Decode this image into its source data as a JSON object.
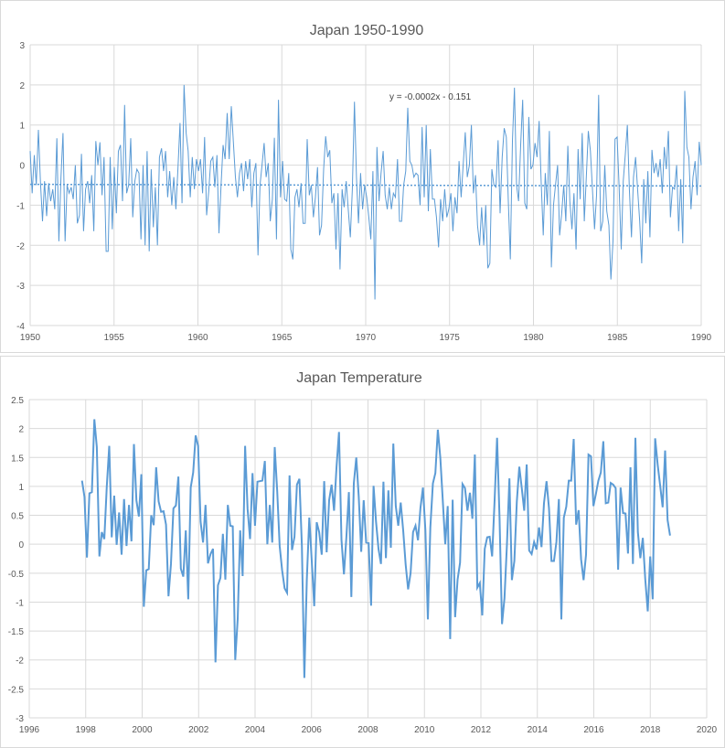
{
  "chart_data": [
    {
      "type": "line",
      "title": "Japan 1950-1990",
      "xlabel": "",
      "ylabel": "",
      "xlim": [
        1950,
        1990
      ],
      "ylim": [
        -4,
        3
      ],
      "xticks": [
        1950,
        1955,
        1960,
        1965,
        1970,
        1975,
        1980,
        1985,
        1990
      ],
      "yticks": [
        -4,
        -3,
        -2,
        -1,
        0,
        1,
        2,
        3
      ],
      "grid": true,
      "line_color": "#5b9bd5",
      "x_start": 1950,
      "x_end": 1990,
      "values": [
        0.35,
        -0.7,
        0.25,
        -0.5,
        0.88,
        -0.4,
        -1.4,
        -0.4,
        -1.27,
        -0.45,
        -0.9,
        -0.6,
        -1.1,
        0.67,
        -1.9,
        -0.3,
        0.8,
        -1.9,
        -0.5,
        -0.7,
        -0.55,
        -0.85,
        0.0,
        -1.45,
        -1.25,
        0.28,
        -1.65,
        -0.6,
        -0.4,
        -0.95,
        -0.25,
        -1.65,
        0.6,
        0.0,
        0.57,
        -0.75,
        0.2,
        -2.15,
        -2.15,
        0.2,
        -1.6,
        -0.05,
        -1.2,
        0.35,
        0.5,
        -0.9,
        1.5,
        -0.7,
        -0.5,
        0.67,
        -1.3,
        -0.4,
        -0.1,
        -0.2,
        -1.85,
        0.0,
        -2.0,
        0.35,
        -2.15,
        -0.1,
        -1.55,
        -0.55,
        -2.0,
        0.2,
        0.42,
        -0.15,
        0.35,
        -0.8,
        -0.15,
        -1.0,
        -0.3,
        -1.1,
        -0.1,
        1.05,
        -0.95,
        2.0,
        0.8,
        0.35,
        -0.8,
        0.2,
        -0.6,
        0.15,
        -0.15,
        0.15,
        -0.7,
        0.7,
        -1.25,
        -0.65,
        0.1,
        0.2,
        -0.55,
        0.25,
        -1.7,
        -0.5,
        0.5,
        0.15,
        1.3,
        0.15,
        1.47,
        0.6,
        -0.3,
        -0.8,
        -0.2,
        0.05,
        -0.65,
        0.1,
        -0.35,
        0.15,
        -1.05,
        -0.2,
        0.05,
        -2.25,
        -0.5,
        0.0,
        0.55,
        -0.3,
        0.05,
        -1.4,
        -0.85,
        0.68,
        -1.85,
        1.63,
        -0.8,
        0.1,
        -0.85,
        -0.9,
        -0.2,
        -2.1,
        -2.35,
        -0.8,
        -0.6,
        -1.05,
        -0.45,
        -1.45,
        -1.45,
        0.65,
        -0.75,
        -0.5,
        -1.3,
        -0.8,
        -0.05,
        -1.75,
        -1.5,
        -0.1,
        0.72,
        0.2,
        0.37,
        -0.95,
        -0.7,
        -2.1,
        -0.7,
        -2.6,
        -0.6,
        -1.05,
        -0.4,
        -1.1,
        -1.8,
        -0.6,
        1.58,
        -0.3,
        -1.45,
        -0.2,
        -1.1,
        -0.5,
        -0.8,
        -1.3,
        -1.85,
        -0.15,
        -3.35,
        0.45,
        -0.9,
        -0.2,
        0.35,
        -0.75,
        -1.1,
        -0.55,
        -1.1,
        -0.7,
        -0.8,
        0.15,
        -1.4,
        -1.4,
        -0.5,
        -0.15,
        1.43,
        0.1,
        0.0,
        -0.3,
        -0.2,
        -0.25,
        -1.0,
        0.95,
        -0.8,
        1.0,
        -1.15,
        0.4,
        -0.85,
        -0.85,
        -1.3,
        -2.05,
        -0.85,
        -1.4,
        -0.6,
        -1.3,
        -1.1,
        -0.7,
        -1.65,
        -0.8,
        -1.2,
        0.1,
        -0.8,
        0.0,
        0.82,
        -0.3,
        0.0,
        1.0,
        -0.7,
        -0.25,
        -1.5,
        -2.0,
        -1.05,
        -2.0,
        -1.0,
        -2.57,
        -2.45,
        -0.1,
        -0.5,
        -0.55,
        0.62,
        -1.2,
        0.2,
        0.92,
        0.7,
        -0.9,
        -2.35,
        0.6,
        1.93,
        -0.5,
        -0.9,
        0.5,
        1.63,
        -0.95,
        -1.1,
        1.2,
        -0.1,
        0.0,
        0.55,
        0.2,
        1.1,
        -0.4,
        -1.75,
        -0.2,
        -1.0,
        0.85,
        -2.55,
        -1.0,
        -0.5,
        0.0,
        -1.75,
        -1.2,
        -0.5,
        -1.4,
        0.48,
        -0.9,
        -1.6,
        -0.7,
        -2.1,
        0.4,
        -0.85,
        0.8,
        -1.4,
        -0.3,
        0.85,
        0.35,
        -0.6,
        -1.6,
        -0.75,
        1.75,
        -1.65,
        -1.4,
        0.0,
        -1.15,
        -1.5,
        -2.85,
        -1.9,
        0.65,
        0.7,
        -0.55,
        -2.1,
        -0.4,
        0.25,
        1.0,
        -0.6,
        -1.8,
        -0.3,
        0.2,
        -0.6,
        -1.4,
        -2.45,
        -0.35,
        -1.45,
        -0.15,
        -1.8,
        0.38,
        -0.2,
        0.05,
        -0.3,
        0.15,
        -0.7,
        0.45,
        -0.1,
        0.85,
        -1.3,
        -0.55,
        -0.6,
        0.0,
        -1.65,
        -0.35,
        -1.95,
        1.85,
        0.45,
        0.2,
        -1.1,
        -0.3,
        0.1,
        -0.75,
        0.58,
        0.0
      ],
      "trendline": {
        "label": "y = -0.0002x - 0.151",
        "start_value": -0.48,
        "end_value": -0.52,
        "style": "dotted"
      }
    },
    {
      "type": "line",
      "title": "Japan Temperature",
      "xlabel": "",
      "ylabel": "",
      "xlim": [
        1996,
        2020
      ],
      "ylim": [
        -3,
        2.5
      ],
      "xticks": [
        1996,
        1998,
        2000,
        2002,
        2004,
        2006,
        2008,
        2010,
        2012,
        2014,
        2016,
        2018,
        2020
      ],
      "yticks": [
        -3,
        -2.5,
        -2,
        -1.5,
        -1,
        -0.5,
        0,
        0.5,
        1,
        1.5,
        2,
        2.5
      ],
      "grid": true,
      "line_color": "#5b9bd5",
      "x_start": 1997.87,
      "x_end": 2018.7,
      "values": [
        1.1,
        0.82,
        -0.23,
        0.88,
        0.9,
        2.16,
        1.68,
        -0.21,
        0.21,
        0.09,
        1.0,
        1.7,
        0.12,
        0.84,
        -0.01,
        0.55,
        -0.18,
        0.78,
        -0.03,
        0.68,
        0.05,
        1.73,
        0.76,
        0.48,
        1.21,
        -1.08,
        -0.45,
        -0.43,
        0.5,
        0.33,
        1.33,
        0.74,
        0.56,
        0.57,
        0.34,
        -0.9,
        -0.34,
        0.62,
        0.67,
        1.17,
        -0.42,
        -0.56,
        0.24,
        -0.95,
        0.98,
        1.24,
        1.88,
        1.7,
        0.39,
        0.03,
        0.68,
        -0.33,
        -0.17,
        -0.08,
        -2.04,
        -0.71,
        -0.58,
        0.18,
        -0.61,
        0.68,
        0.32,
        0.31,
        -2.0,
        -1.29,
        0.24,
        -0.55,
        1.7,
        0.61,
        0.09,
        1.23,
        0.32,
        1.08,
        1.09,
        1.1,
        1.44,
        0.0,
        0.68,
        0.03,
        1.68,
        0.92,
        -0.03,
        -0.45,
        -0.76,
        -0.84,
        1.19,
        -0.1,
        0.13,
        1.03,
        1.13,
        -0.03,
        -2.31,
        -0.61,
        0.46,
        -0.29,
        -1.07,
        0.38,
        0.21,
        -0.18,
        1.09,
        -0.14,
        0.76,
        1.03,
        0.58,
        1.34,
        1.94,
        0.08,
        -0.52,
        0.13,
        0.9,
        -0.91,
        1.05,
        1.5,
        0.82,
        -0.13,
        0.76,
        0.03,
        0.02,
        -1.06,
        1.01,
        0.39,
        -0.08,
        -0.34,
        1.08,
        -0.24,
        0.93,
        -0.06,
        1.74,
        0.66,
        0.32,
        0.72,
        0.24,
        -0.35,
        -0.78,
        -0.5,
        0.21,
        0.32,
        0.07,
        0.63,
        0.98,
        0.24,
        -1.3,
        0.29,
        1.05,
        1.23,
        1.98,
        1.5,
        0.76,
        0.0,
        0.66,
        -1.64,
        0.77,
        -1.26,
        -0.61,
        -0.32,
        1.04,
        0.97,
        0.58,
        0.89,
        0.44,
        1.55,
        -0.75,
        -0.67,
        -1.23,
        -0.08,
        0.12,
        0.13,
        -0.21,
        0.76,
        1.84,
        0.45,
        -1.38,
        -0.93,
        0.0,
        1.14,
        -0.62,
        -0.29,
        0.74,
        1.34,
        0.97,
        0.58,
        1.38,
        -0.11,
        -0.17,
        0.04,
        -0.09,
        0.29,
        -0.05,
        0.71,
        1.09,
        0.62,
        -0.29,
        -0.29,
        0.04,
        0.78,
        -1.3,
        0.46,
        0.65,
        1.1,
        1.1,
        1.82,
        0.34,
        0.59,
        -0.26,
        -0.62,
        -0.18,
        1.55,
        1.52,
        0.66,
        0.87,
        1.1,
        1.24,
        1.78,
        0.71,
        0.72,
        1.06,
        1.03,
        0.97,
        -0.44,
        0.98,
        0.54,
        0.53,
        -0.16,
        1.33,
        -0.34,
        1.84,
        0.21,
        -0.24,
        0.11,
        -0.61,
        -1.16,
        -0.21,
        -0.95,
        1.83,
        1.37,
        1.01,
        0.64,
        1.62,
        0.42,
        0.15
      ]
    }
  ]
}
